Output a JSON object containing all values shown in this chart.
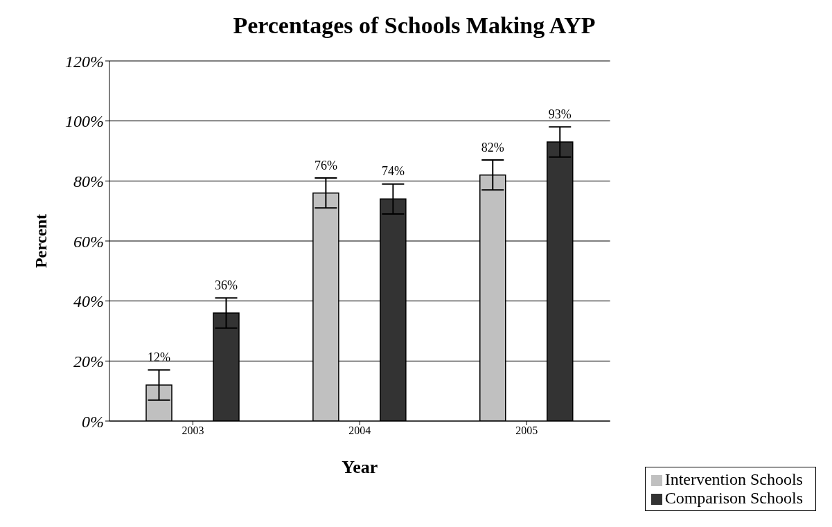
{
  "chart_data": {
    "type": "bar",
    "title": "Percentages of Schools Making AYP",
    "xlabel": "Year",
    "ylabel": "Percent",
    "categories": [
      "2003",
      "2004",
      "2005"
    ],
    "series": [
      {
        "name": "Intervention Schools",
        "color": "#c0c0c0",
        "values": [
          12,
          76,
          82
        ],
        "errors": [
          5,
          5,
          5
        ],
        "value_labels": [
          "12%",
          "76%",
          "82%"
        ]
      },
      {
        "name": "Comparison Schools",
        "color": "#333333",
        "values": [
          36,
          74,
          93
        ],
        "errors": [
          5,
          5,
          5
        ],
        "value_labels": [
          "36%",
          "74%",
          "93%"
        ]
      }
    ],
    "ylim": [
      0,
      120
    ],
    "yticks": [
      {
        "value": 0,
        "label": "0%"
      },
      {
        "value": 20,
        "label": "20%"
      },
      {
        "value": 40,
        "label": "40%"
      },
      {
        "value": 60,
        "label": "60%"
      },
      {
        "value": 80,
        "label": "80%"
      },
      {
        "value": 100,
        "label": "100%"
      },
      {
        "value": 120,
        "label": "120%"
      }
    ],
    "grid": "y",
    "legend": "bottom right"
  }
}
